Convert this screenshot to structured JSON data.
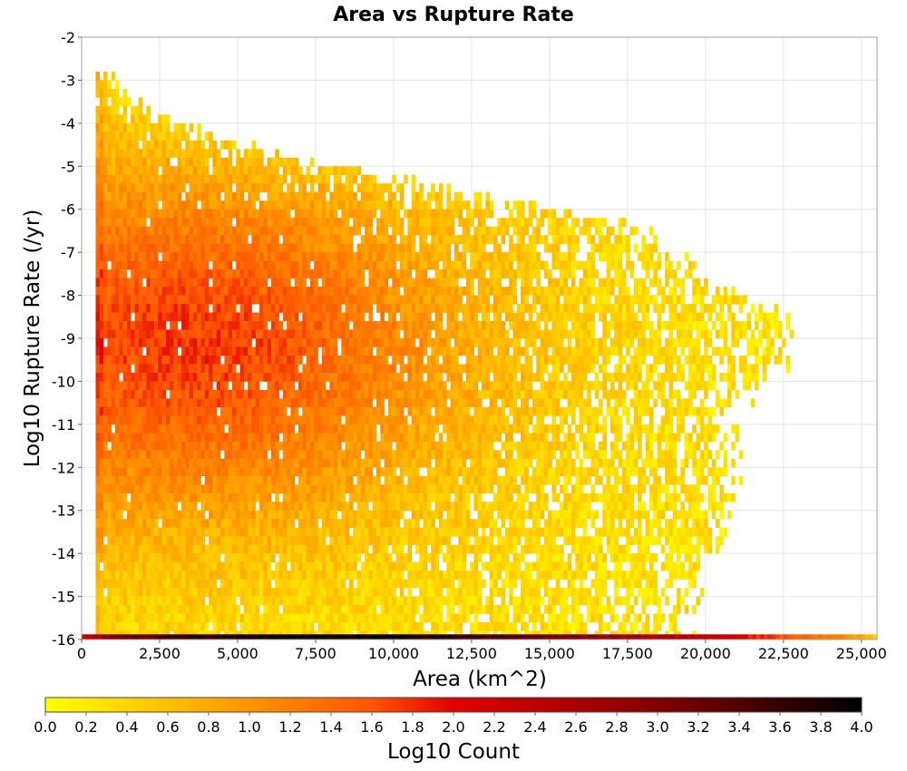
{
  "chart_data": {
    "type": "heatmap",
    "title": "Area vs Rupture Rate",
    "xlabel": "Area (km^2)",
    "ylabel": "Log10 Rupture Rate (/yr)",
    "xlim": [
      0,
      25500
    ],
    "ylim": [
      -16,
      -2
    ],
    "x_ticks": [
      0,
      2500,
      5000,
      7500,
      10000,
      12500,
      15000,
      17500,
      20000,
      22500,
      25000
    ],
    "x_tick_labels": [
      "0",
      "2,500",
      "5,000",
      "7,500",
      "10,000",
      "12,500",
      "15,000",
      "17,500",
      "20,000",
      "22,500",
      "25,000"
    ],
    "y_ticks": [
      -2,
      -3,
      -4,
      -5,
      -6,
      -7,
      -8,
      -9,
      -10,
      -11,
      -12,
      -13,
      -14,
      -15,
      -16
    ],
    "y_tick_labels": [
      "-2",
      "-3",
      "-4",
      "-5",
      "-6",
      "-7",
      "-8",
      "-9",
      "-10",
      "-11",
      "-12",
      "-13",
      "-14",
      "-15",
      "-16"
    ],
    "grid": true,
    "density": {
      "x_bin_width": 125,
      "y_bin_height": 0.2,
      "x_start": 450,
      "approx_max_area_by_rate": [
        {
          "rate": -2.8,
          "area": 500
        },
        {
          "rate": -3.5,
          "area": 1700
        },
        {
          "rate": -4.5,
          "area": 5200
        },
        {
          "rate": -5.5,
          "area": 12500
        },
        {
          "rate": -6.3,
          "area": 17500
        },
        {
          "rate": -7.5,
          "area": 19700
        },
        {
          "rate": -8.5,
          "area": 22500
        },
        {
          "rate": -9.5,
          "area": 22000
        },
        {
          "rate": -10.5,
          "area": 20500
        },
        {
          "rate": -12.0,
          "area": 20500
        },
        {
          "rate": -13.0,
          "area": 20500
        },
        {
          "rate": -14.5,
          "area": 19500
        },
        {
          "rate": -15.5,
          "area": 19000
        }
      ],
      "peak_log_count": 1.6,
      "peak_area": 4500,
      "peak_rate": -9.0,
      "floor_row": {
        "rate": -16,
        "points": [
          {
            "area": 0,
            "log_count": 2.2
          },
          {
            "area": 500,
            "log_count": 2.6
          },
          {
            "area": 1000,
            "log_count": 3.0
          },
          {
            "area": 3000,
            "log_count": 3.5
          },
          {
            "area": 6000,
            "log_count": 3.9
          },
          {
            "area": 10000,
            "log_count": 3.9
          },
          {
            "area": 13000,
            "log_count": 3.4
          },
          {
            "area": 17000,
            "log_count": 2.8
          },
          {
            "area": 20000,
            "log_count": 2.3
          },
          {
            "area": 22500,
            "log_count": 1.6
          },
          {
            "area": 24000,
            "log_count": 1.2
          },
          {
            "area": 25500,
            "log_count": 0.5
          }
        ]
      }
    },
    "colorbar": {
      "label": "Log10 Count",
      "min": 0.0,
      "max": 4.0,
      "tick_labels": [
        "0.0",
        "0.2",
        "0.4",
        "0.6",
        "0.8",
        "1.0",
        "1.2",
        "1.4",
        "1.6",
        "1.8",
        "2.0",
        "2.2",
        "2.4",
        "2.6",
        "2.8",
        "3.0",
        "3.2",
        "3.4",
        "3.6",
        "3.8",
        "4.0"
      ],
      "stops": [
        {
          "value": 0.0,
          "color": "#ffff00"
        },
        {
          "value": 0.8,
          "color": "#ffaa00"
        },
        {
          "value": 1.6,
          "color": "#ff5500"
        },
        {
          "value": 2.0,
          "color": "#e00000"
        },
        {
          "value": 2.8,
          "color": "#960000"
        },
        {
          "value": 3.4,
          "color": "#500000"
        },
        {
          "value": 4.0,
          "color": "#000000"
        }
      ]
    }
  }
}
